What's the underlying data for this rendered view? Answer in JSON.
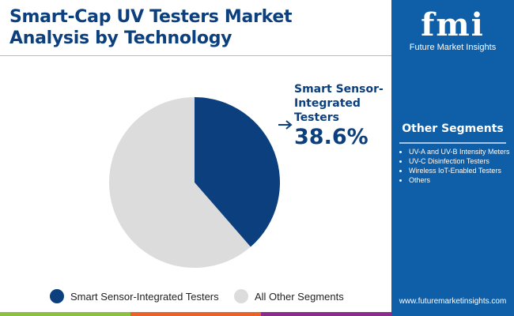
{
  "title": [
    "Smart-Cap UV Testers Market",
    "Analysis by Technology"
  ],
  "brand": {
    "logo": "fmi",
    "name": "Future Market Insights",
    "url": "www.futuremarketinsights.com"
  },
  "other_segments": {
    "title": "Other Segments",
    "items": [
      "UV-A and UV-B Intensity Meters",
      "UV-C Disinfection Testers",
      "Wireless IoT-Enabled Testers",
      "Others"
    ]
  },
  "callout": {
    "label": "Smart Sensor-Integrated Testers",
    "value": "38.6%"
  },
  "chart_data": {
    "type": "pie",
    "categories": [
      "Smart Sensor-Integrated Testers",
      "All Other Segments"
    ],
    "values": [
      38.6,
      61.4
    ],
    "colors": [
      "#0b3f7e",
      "#dcdcdc"
    ],
    "legend": "bottom"
  }
}
